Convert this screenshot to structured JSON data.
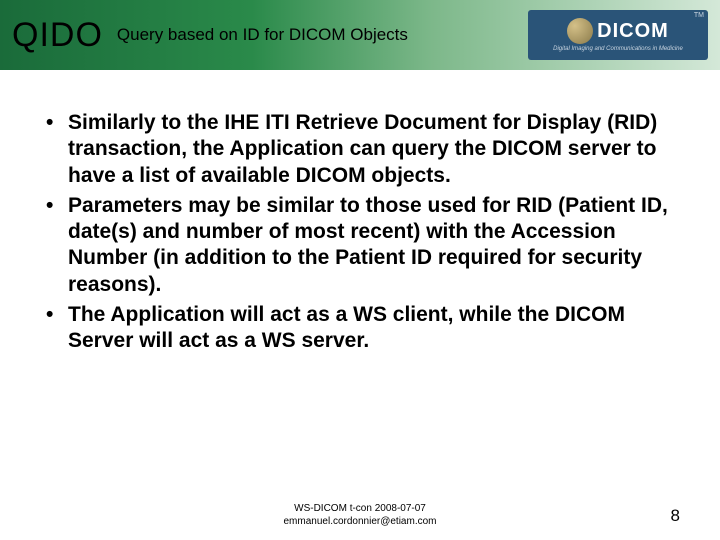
{
  "header": {
    "acronym": "QIDO",
    "expansion": "Query based on ID for DICOM Objects",
    "logo_text": "DICOM",
    "logo_subtitle": "Digital Imaging and Communications in Medicine",
    "logo_tm": "TM"
  },
  "bullets": [
    "Similarly to the IHE ITI Retrieve Document for Display (RID) transaction, the Application can query the DICOM server to have a list of available DICOM objects.",
    "Parameters may be similar to those used for RID (Patient ID, date(s) and number of most recent) with the Accession Number (in addition to the Patient ID required for security reasons).",
    "The Application will act as a WS client, while the DICOM Server will act as a WS server."
  ],
  "footer": {
    "line1": "WS-DICOM t-con 2008-07-07",
    "line2": "emmanuel.cordonnier@etiam.com"
  },
  "page_number": "8"
}
